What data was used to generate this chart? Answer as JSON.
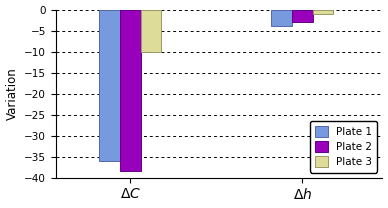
{
  "groups": [
    "ΔC",
    "Δh"
  ],
  "plates": [
    "Plate 1",
    "Plate 2",
    "Plate 3"
  ],
  "values_dC": [
    -36.0,
    -38.5,
    -10.0
  ],
  "values_dh": [
    -4.0,
    -3.0,
    -1.0
  ],
  "colors": [
    "#7799DD",
    "#9900BB",
    "#DDDD99"
  ],
  "bar_edge_colors": [
    "#5566AA",
    "#660088",
    "#999966"
  ],
  "ylabel": "Variation",
  "ylim": [
    -40,
    0
  ],
  "yticks": [
    0,
    -5,
    -10,
    -15,
    -20,
    -25,
    -30,
    -35,
    -40
  ],
  "bar_width": 0.18,
  "group_centers": [
    1.0,
    2.5
  ],
  "xlim": [
    0.35,
    3.2
  ],
  "background_color": "#ffffff"
}
